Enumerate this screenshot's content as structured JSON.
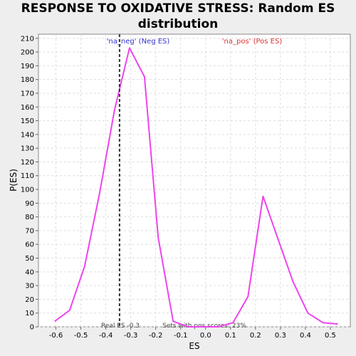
{
  "chart_data": {
    "type": "line",
    "title_line1": "RESPONSE TO OXIDATIVE STRESS: Random ES",
    "title_line2": "distribution",
    "xlabel": "ES",
    "ylabel": "P(ES)",
    "xlim": [
      -0.67,
      0.58
    ],
    "ylim": [
      0,
      213
    ],
    "x_ticks": [
      -0.6,
      -0.5,
      -0.4,
      -0.3,
      -0.2,
      -0.1,
      0.0,
      0.1,
      0.2,
      0.3,
      0.4,
      0.5
    ],
    "x_tick_labels": [
      "-0.6",
      "-0.5",
      "-0.4",
      "-0.3",
      "-0.2",
      "-0.1",
      "0.0",
      "0.1",
      "0.2",
      "0.3",
      "0.4",
      "0.5"
    ],
    "y_ticks": [
      0,
      10,
      20,
      30,
      40,
      50,
      60,
      70,
      80,
      90,
      100,
      110,
      120,
      130,
      140,
      150,
      160,
      170,
      180,
      190,
      200,
      210
    ],
    "grid": true,
    "line_color": "#ee44ee",
    "series": [
      {
        "x": [
          -0.605,
          -0.545,
          -0.485,
          -0.425,
          -0.365,
          -0.305,
          -0.245,
          -0.19,
          -0.13,
          -0.07,
          -0.01,
          0.05,
          0.11,
          0.17,
          0.23,
          0.29,
          0.35,
          0.41,
          0.47,
          0.53
        ],
        "y": [
          4,
          12,
          44,
          97,
          158,
          203,
          182,
          65,
          4,
          0,
          0,
          0,
          3,
          22,
          95,
          64,
          33,
          10,
          3,
          2
        ]
      }
    ],
    "vline": {
      "x": -0.345,
      "color": "#333333"
    },
    "annotations": {
      "neg_label": "'na_neg' (Neg ES)",
      "neg_color": "#3333cc",
      "pos_label": "'na_pos' (Pos ES)",
      "pos_color": "#dd3333",
      "real_es": "Real ES -0.3",
      "sets_pos": "Sets with pos scores: 23%"
    }
  }
}
